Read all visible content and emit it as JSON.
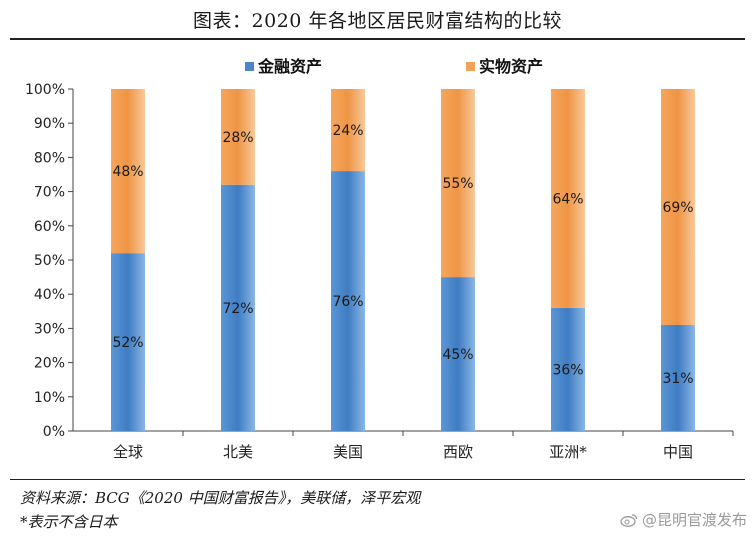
{
  "title": "图表：2020 年各地区居民财富结构的比较",
  "notes": {
    "source": "资料来源：BCG《2020 中国财富报告》，美联储，泽平宏观",
    "footnote": "*表示不含日本"
  },
  "watermark": "@昆明官渡发布",
  "chart_data": {
    "type": "bar",
    "stacked": true,
    "categories": [
      "全球",
      "北美",
      "美国",
      "西欧",
      "亚洲*",
      "中国"
    ],
    "series": [
      {
        "name": "金融资产",
        "color": "#4a86c8",
        "values": [
          52,
          72,
          76,
          45,
          36,
          31
        ],
        "labels": [
          "52%",
          "72%",
          "76%",
          "45%",
          "36%",
          "31%"
        ]
      },
      {
        "name": "实物资产",
        "color": "#f0a25a",
        "values": [
          48,
          28,
          24,
          55,
          64,
          69
        ],
        "labels": [
          "48%",
          "28%",
          "24%",
          "55%",
          "64%",
          "69%"
        ]
      }
    ],
    "ylim": [
      0,
      100
    ],
    "yticks": [
      "0%",
      "10%",
      "20%",
      "30%",
      "40%",
      "50%",
      "60%",
      "70%",
      "80%",
      "90%",
      "100%"
    ],
    "legend_position": "top-center",
    "grid": false
  }
}
